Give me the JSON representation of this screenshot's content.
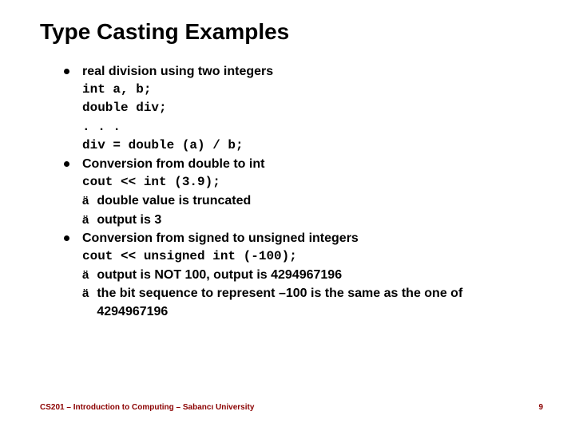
{
  "title": "Type Casting Examples",
  "bullets": [
    {
      "heading": "real division using two integers",
      "code": [
        "int a, b;",
        "double div;",
        ". . .",
        "div = double (a) / b;"
      ],
      "subs": []
    },
    {
      "heading": "Conversion from double to int",
      "code": [
        "cout << int (3.9);"
      ],
      "subs": [
        "double value is truncated",
        "output is 3"
      ]
    },
    {
      "heading": "Conversion from signed to unsigned integers",
      "code": [
        "cout << unsigned int (-100);"
      ],
      "subs": [
        "output is NOT 100, output is 4294967196",
        "the bit sequence to represent –100 is the same as the one of 4294967196"
      ]
    }
  ],
  "footer": "CS201 – Introduction to Computing – Sabancı University",
  "page": "9",
  "colors": {
    "title": "#000000",
    "footer": "#8b0000",
    "background": "#ffffff"
  }
}
